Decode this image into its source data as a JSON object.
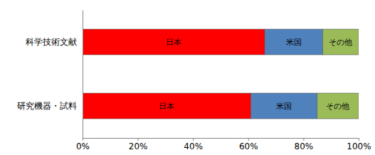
{
  "chart_data": {
    "type": "bar",
    "orientation": "horizontal",
    "stacked": true,
    "categories": [
      "科学技術文献",
      "研究機器・試料"
    ],
    "series": [
      {
        "name": "日本",
        "color": "#ff0000",
        "values": [
          66,
          61
        ]
      },
      {
        "name": "米国",
        "color": "#4f81bd",
        "values": [
          21,
          24
        ]
      },
      {
        "name": "その他",
        "color": "#9bbb59",
        "values": [
          13,
          15
        ]
      }
    ],
    "xlim": [
      0,
      100
    ],
    "xticks": [
      {
        "value": 0,
        "label": "0%"
      },
      {
        "value": 20,
        "label": "20%"
      },
      {
        "value": 40,
        "label": "40%"
      },
      {
        "value": 60,
        "label": "60%"
      },
      {
        "value": 80,
        "label": "80%"
      },
      {
        "value": 100,
        "label": "100%"
      }
    ],
    "grid": false
  }
}
